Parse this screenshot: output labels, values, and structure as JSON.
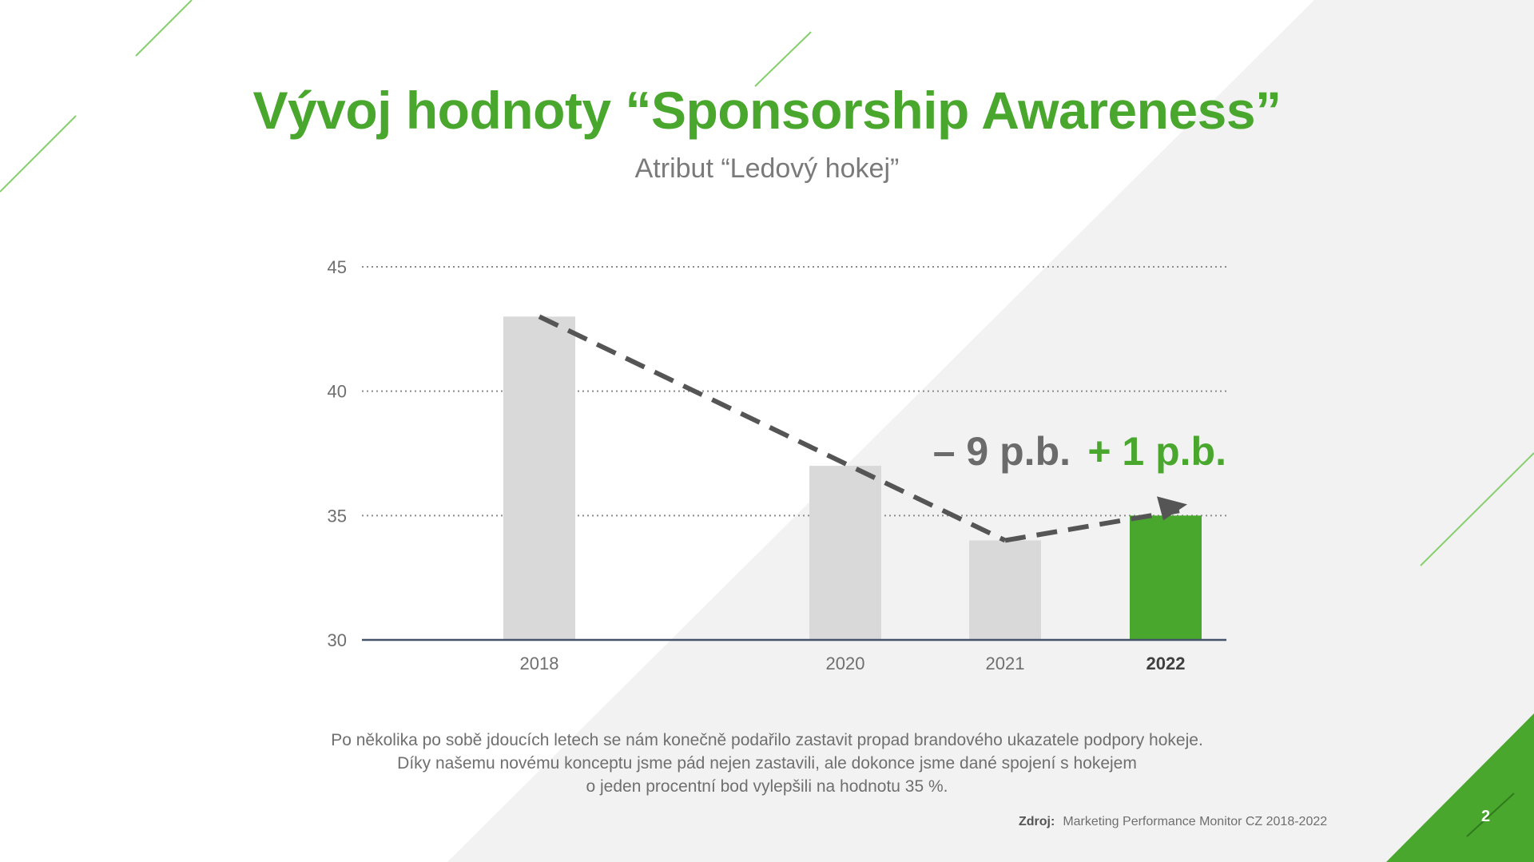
{
  "slide": {
    "title": "Vývoj hodnoty “Sponsorship Awareness”",
    "subtitle": "Atribut “Ledový hokej”",
    "description_lines": [
      "Po několika po sobě jdoucích letech se nám konečně podařilo zastavit propad brandového ukazatele podpory hokeje.",
      "Díky našemu novému konceptu jsme pád nejen zastavili, ale dokonce jsme dané spojení s hokejem",
      "o jeden procentní bod vylepšili na hodnotu 35 %."
    ],
    "source_label": "Zdroj:",
    "source_text": "Marketing Performance Monitor CZ 2018-2022",
    "page_number": "2"
  },
  "colors": {
    "accent_green": "#4aa72e",
    "bar_gray": "#d9d9d9",
    "trend_dark": "#555555",
    "text_gray": "#6f6f6f",
    "axis_blue": "#44546a",
    "background_gray": "#f2f2f2"
  },
  "chart_data": {
    "type": "bar",
    "categories": [
      "2018",
      "2020",
      "2021",
      "2022"
    ],
    "values": [
      43,
      37,
      34,
      35
    ],
    "highlight_category": "2022",
    "ylim": [
      30,
      45
    ],
    "yticks": [
      30,
      35,
      40,
      45
    ],
    "grid": true,
    "title": "",
    "xlabel": "",
    "ylabel": "",
    "trend": {
      "points": [
        {
          "x": "2018",
          "y": 43
        },
        {
          "x": "2021",
          "y": 34
        },
        {
          "x": "2022",
          "y": 35
        }
      ],
      "style": "dashed"
    },
    "annotations": [
      {
        "text": "– 9 p.b.",
        "color": "#6b6b6b"
      },
      {
        "text": "+ 1 p.b.",
        "color": "#4aa72e"
      }
    ]
  }
}
